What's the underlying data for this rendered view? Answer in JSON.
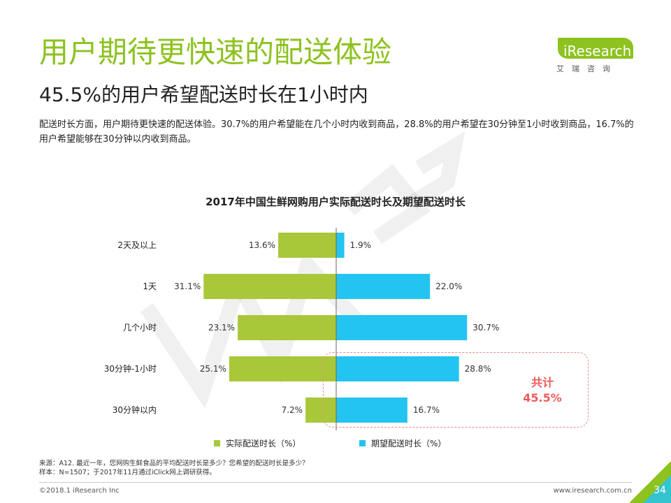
{
  "header": {
    "title": "用户期待更快速的配送体验",
    "subtitle": "45.5%的用户希望配送时长在1小时内",
    "description": "配送时长方面，用户期待更快速的配送体验。30.7%的用户希望能在几个小时内收到商品，28.8%的用户希望在30分钟至1小时收到商品，16.7%的用户希望能够在30分钟以内收到商品。"
  },
  "logo": {
    "brand": "iResearch",
    "sub": "艾瑞咨询"
  },
  "chart_data": {
    "type": "bar",
    "orientation": "horizontal-diverging",
    "title": "2017年中国生鲜网购用户实际配送时长及期望配送时长",
    "categories": [
      "2天及以上",
      "1天",
      "几个小时",
      "30分钟-1小时",
      "30分钟以内"
    ],
    "series": [
      {
        "name": "实际配送时长（%）",
        "values": [
          13.6,
          31.1,
          23.1,
          25.1,
          7.2
        ],
        "labels": [
          "13.6%",
          "31.1%",
          "23.1%",
          "25.1%",
          "7.2%"
        ],
        "color": "#a8c83a",
        "direction": "left"
      },
      {
        "name": "期望配送时长（%）",
        "values": [
          1.9,
          22.0,
          30.7,
          28.8,
          16.7
        ],
        "labels": [
          "1.9%",
          "22.0%",
          "30.7%",
          "28.8%",
          "16.7%"
        ],
        "color": "#23c4f0",
        "direction": "right"
      }
    ],
    "annotation": {
      "line1": "共计",
      "line2": "45.5%"
    },
    "legend_position": "bottom",
    "grid": false
  },
  "footer": {
    "source_line1": "来源：A12. 最近一年，您网购生鲜食品的平均配送时长是多少？您希望的配送时长是多少？",
    "source_line2": "样本：N=1507；于2017年11月通过iClick网上调研获得。",
    "copyright": "©2018.1 iResearch Inc",
    "website": "www.iresearch.com.cn",
    "page_number": "34"
  },
  "colors": {
    "accent_green": "#8dc21f",
    "highlight_red": "#ef5a5a"
  }
}
